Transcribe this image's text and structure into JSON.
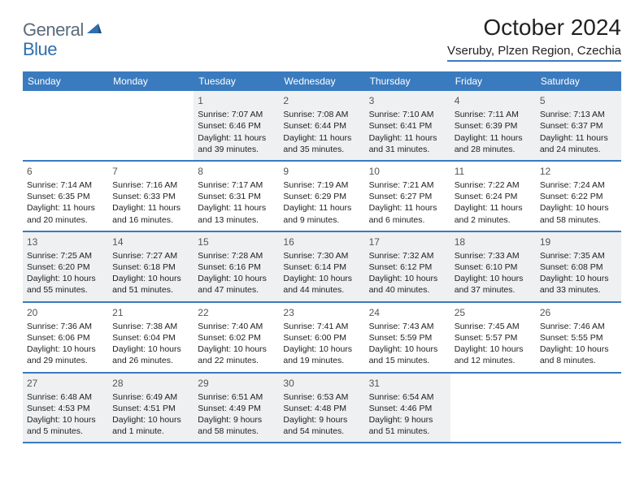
{
  "logo": {
    "text1": "General",
    "text2": "Blue"
  },
  "title": "October 2024",
  "location": "Vseruby, Plzen Region, Czechia",
  "colors": {
    "header_bg": "#3a7bbf",
    "header_text": "#ffffff",
    "rule": "#3a7bbf",
    "shaded_bg": "#eef0f2",
    "body_text": "#222222",
    "logo_gray": "#5a6b7a",
    "logo_blue": "#2f6fb0"
  },
  "weekdays": [
    "Sunday",
    "Monday",
    "Tuesday",
    "Wednesday",
    "Thursday",
    "Friday",
    "Saturday"
  ],
  "weeks": [
    [
      null,
      null,
      {
        "n": "1",
        "sr": "7:07 AM",
        "ss": "6:46 PM",
        "dl": "11 hours and 39 minutes."
      },
      {
        "n": "2",
        "sr": "7:08 AM",
        "ss": "6:44 PM",
        "dl": "11 hours and 35 minutes."
      },
      {
        "n": "3",
        "sr": "7:10 AM",
        "ss": "6:41 PM",
        "dl": "11 hours and 31 minutes."
      },
      {
        "n": "4",
        "sr": "7:11 AM",
        "ss": "6:39 PM",
        "dl": "11 hours and 28 minutes."
      },
      {
        "n": "5",
        "sr": "7:13 AM",
        "ss": "6:37 PM",
        "dl": "11 hours and 24 minutes."
      }
    ],
    [
      {
        "n": "6",
        "sr": "7:14 AM",
        "ss": "6:35 PM",
        "dl": "11 hours and 20 minutes."
      },
      {
        "n": "7",
        "sr": "7:16 AM",
        "ss": "6:33 PM",
        "dl": "11 hours and 16 minutes."
      },
      {
        "n": "8",
        "sr": "7:17 AM",
        "ss": "6:31 PM",
        "dl": "11 hours and 13 minutes."
      },
      {
        "n": "9",
        "sr": "7:19 AM",
        "ss": "6:29 PM",
        "dl": "11 hours and 9 minutes."
      },
      {
        "n": "10",
        "sr": "7:21 AM",
        "ss": "6:27 PM",
        "dl": "11 hours and 6 minutes."
      },
      {
        "n": "11",
        "sr": "7:22 AM",
        "ss": "6:24 PM",
        "dl": "11 hours and 2 minutes."
      },
      {
        "n": "12",
        "sr": "7:24 AM",
        "ss": "6:22 PM",
        "dl": "10 hours and 58 minutes."
      }
    ],
    [
      {
        "n": "13",
        "sr": "7:25 AM",
        "ss": "6:20 PM",
        "dl": "10 hours and 55 minutes."
      },
      {
        "n": "14",
        "sr": "7:27 AM",
        "ss": "6:18 PM",
        "dl": "10 hours and 51 minutes."
      },
      {
        "n": "15",
        "sr": "7:28 AM",
        "ss": "6:16 PM",
        "dl": "10 hours and 47 minutes."
      },
      {
        "n": "16",
        "sr": "7:30 AM",
        "ss": "6:14 PM",
        "dl": "10 hours and 44 minutes."
      },
      {
        "n": "17",
        "sr": "7:32 AM",
        "ss": "6:12 PM",
        "dl": "10 hours and 40 minutes."
      },
      {
        "n": "18",
        "sr": "7:33 AM",
        "ss": "6:10 PM",
        "dl": "10 hours and 37 minutes."
      },
      {
        "n": "19",
        "sr": "7:35 AM",
        "ss": "6:08 PM",
        "dl": "10 hours and 33 minutes."
      }
    ],
    [
      {
        "n": "20",
        "sr": "7:36 AM",
        "ss": "6:06 PM",
        "dl": "10 hours and 29 minutes."
      },
      {
        "n": "21",
        "sr": "7:38 AM",
        "ss": "6:04 PM",
        "dl": "10 hours and 26 minutes."
      },
      {
        "n": "22",
        "sr": "7:40 AM",
        "ss": "6:02 PM",
        "dl": "10 hours and 22 minutes."
      },
      {
        "n": "23",
        "sr": "7:41 AM",
        "ss": "6:00 PM",
        "dl": "10 hours and 19 minutes."
      },
      {
        "n": "24",
        "sr": "7:43 AM",
        "ss": "5:59 PM",
        "dl": "10 hours and 15 minutes."
      },
      {
        "n": "25",
        "sr": "7:45 AM",
        "ss": "5:57 PM",
        "dl": "10 hours and 12 minutes."
      },
      {
        "n": "26",
        "sr": "7:46 AM",
        "ss": "5:55 PM",
        "dl": "10 hours and 8 minutes."
      }
    ],
    [
      {
        "n": "27",
        "sr": "6:48 AM",
        "ss": "4:53 PM",
        "dl": "10 hours and 5 minutes."
      },
      {
        "n": "28",
        "sr": "6:49 AM",
        "ss": "4:51 PM",
        "dl": "10 hours and 1 minute."
      },
      {
        "n": "29",
        "sr": "6:51 AM",
        "ss": "4:49 PM",
        "dl": "9 hours and 58 minutes."
      },
      {
        "n": "30",
        "sr": "6:53 AM",
        "ss": "4:48 PM",
        "dl": "9 hours and 54 minutes."
      },
      {
        "n": "31",
        "sr": "6:54 AM",
        "ss": "4:46 PM",
        "dl": "9 hours and 51 minutes."
      },
      null,
      null
    ]
  ],
  "labels": {
    "sunrise": "Sunrise:",
    "sunset": "Sunset:",
    "daylight": "Daylight:"
  }
}
